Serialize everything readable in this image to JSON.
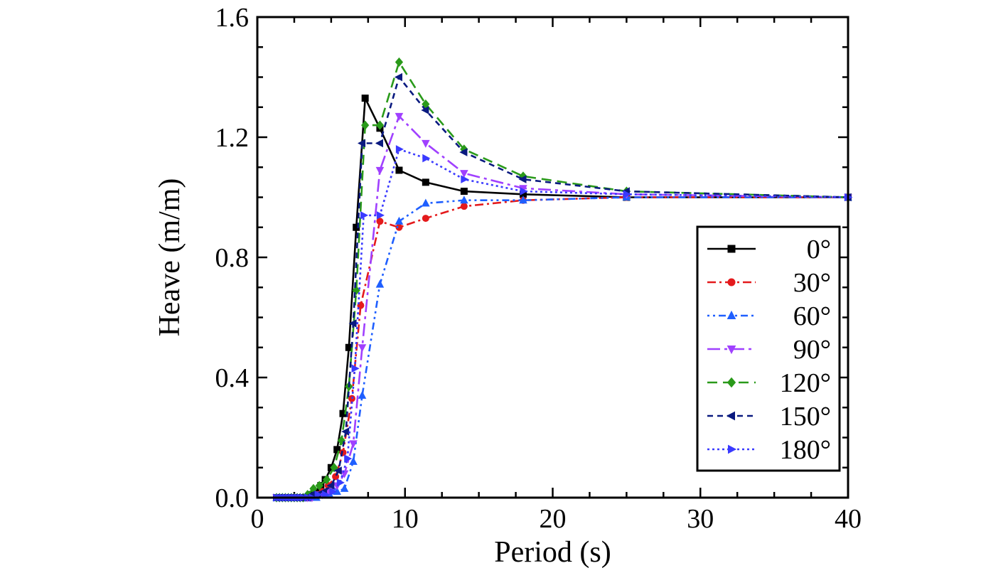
{
  "chart_data": {
    "type": "line",
    "title": "",
    "xlabel": "Period (s)",
    "ylabel": "Heave (m/m)",
    "xlim": [
      0,
      40
    ],
    "ylim": [
      0.0,
      1.6
    ],
    "xticks": [
      0,
      10,
      20,
      30,
      40
    ],
    "xtick_labels": [
      "0",
      "10",
      "20",
      "30",
      "40"
    ],
    "yticks": [
      0.0,
      0.4,
      0.8,
      1.2,
      1.6
    ],
    "ytick_labels": [
      "0.0",
      "0.4",
      "0.8",
      "1.2",
      "1.6"
    ],
    "grid": false,
    "legend_position": "right",
    "series": [
      {
        "name": "0°",
        "color": "#000000",
        "marker": "square",
        "dash": "solid",
        "x": [
          1.3,
          1.5,
          1.7,
          1.9,
          2.1,
          2.3,
          2.5,
          2.7,
          2.9,
          3.1,
          3.4,
          3.7,
          4.0,
          4.3,
          4.6,
          5.0,
          5.4,
          5.8,
          6.2,
          6.7,
          7.3,
          8.3,
          9.6,
          11.4,
          14.0,
          18.0,
          25.0,
          40.0
        ],
        "y": [
          0.0,
          0.0,
          0.0,
          0.0,
          0.0,
          0.0,
          0.0,
          0.0,
          0.0,
          0.0,
          0.0,
          0.01,
          0.02,
          0.04,
          0.06,
          0.1,
          0.16,
          0.28,
          0.5,
          0.9,
          1.33,
          1.23,
          1.09,
          1.05,
          1.02,
          1.01,
          1.0,
          1.0
        ]
      },
      {
        "name": "30°",
        "color": "#e41a1c",
        "marker": "circle",
        "dash": "12,5,3,5",
        "x": [
          1.3,
          1.5,
          1.7,
          1.9,
          2.1,
          2.3,
          2.5,
          2.7,
          2.9,
          3.1,
          3.4,
          3.7,
          4.0,
          4.4,
          4.8,
          5.3,
          5.8,
          6.4,
          7.0,
          8.3,
          9.6,
          11.4,
          14.0,
          18.0,
          25.0,
          40.0
        ],
        "y": [
          0.0,
          0.0,
          0.0,
          0.0,
          0.0,
          0.0,
          0.0,
          0.0,
          0.0,
          0.0,
          0.0,
          0.0,
          0.01,
          0.02,
          0.04,
          0.07,
          0.15,
          0.33,
          0.64,
          0.92,
          0.9,
          0.93,
          0.97,
          0.99,
          1.0,
          1.0
        ]
      },
      {
        "name": "60°",
        "color": "#1f5fff",
        "marker": "triangle-up",
        "dash": "3,5,3,5,10,5",
        "x": [
          1.3,
          1.5,
          1.7,
          1.9,
          2.1,
          2.3,
          2.5,
          2.7,
          2.9,
          3.1,
          3.4,
          3.7,
          4.0,
          4.4,
          4.9,
          5.4,
          5.9,
          6.5,
          7.1,
          8.3,
          9.6,
          11.4,
          14.0,
          18.0,
          25.0,
          40.0
        ],
        "y": [
          0.0,
          0.0,
          0.0,
          0.0,
          0.0,
          0.0,
          0.0,
          0.0,
          0.0,
          0.0,
          0.0,
          0.0,
          0.0,
          0.01,
          0.01,
          0.02,
          0.03,
          0.12,
          0.34,
          0.71,
          0.92,
          0.98,
          0.99,
          0.99,
          1.0,
          1.0
        ]
      },
      {
        "name": "90°",
        "color": "#a040ff",
        "marker": "triangle-down",
        "dash": "18,6,4,6",
        "x": [
          1.3,
          1.5,
          1.7,
          1.9,
          2.1,
          2.3,
          2.5,
          2.7,
          2.9,
          3.1,
          3.4,
          3.7,
          4.0,
          4.4,
          4.9,
          5.4,
          5.9,
          6.5,
          7.1,
          8.3,
          9.6,
          11.4,
          14.0,
          18.0,
          25.0,
          40.0
        ],
        "y": [
          0.0,
          0.0,
          0.0,
          0.0,
          0.0,
          0.0,
          0.0,
          0.0,
          0.0,
          0.0,
          0.0,
          0.0,
          0.01,
          0.01,
          0.02,
          0.04,
          0.08,
          0.18,
          0.5,
          1.09,
          1.27,
          1.18,
          1.08,
          1.03,
          1.01,
          1.0
        ]
      },
      {
        "name": "120°",
        "color": "#2a9a1a",
        "marker": "diamond",
        "dash": "14,8",
        "x": [
          1.3,
          1.5,
          1.7,
          1.9,
          2.1,
          2.3,
          2.5,
          2.7,
          2.9,
          3.1,
          3.4,
          3.8,
          4.2,
          4.7,
          5.2,
          5.7,
          6.2,
          6.7,
          7.3,
          8.3,
          9.6,
          11.4,
          14.0,
          18.0,
          25.0,
          40.0
        ],
        "y": [
          0.0,
          0.0,
          0.0,
          0.0,
          0.0,
          0.0,
          0.0,
          0.0,
          0.0,
          0.0,
          0.01,
          0.03,
          0.04,
          0.06,
          0.1,
          0.19,
          0.37,
          0.69,
          1.24,
          1.24,
          1.45,
          1.31,
          1.16,
          1.07,
          1.02,
          1.0
        ]
      },
      {
        "name": "150°",
        "color": "#0a1a80",
        "marker": "triangle-left",
        "dash": "8,6",
        "x": [
          1.3,
          1.5,
          1.7,
          1.9,
          2.1,
          2.3,
          2.5,
          2.7,
          2.9,
          3.1,
          3.4,
          3.7,
          4.1,
          4.5,
          5.0,
          5.5,
          6.0,
          6.5,
          7.1,
          8.3,
          9.6,
          11.4,
          14.0,
          18.0,
          25.0,
          40.0
        ],
        "y": [
          0.0,
          0.0,
          0.0,
          0.0,
          0.0,
          0.0,
          0.0,
          0.0,
          0.0,
          0.0,
          0.0,
          0.01,
          0.01,
          0.02,
          0.04,
          0.09,
          0.22,
          0.58,
          1.18,
          1.18,
          1.4,
          1.29,
          1.15,
          1.06,
          1.02,
          1.0
        ]
      },
      {
        "name": "180°",
        "color": "#3a3aff",
        "marker": "triangle-right",
        "dash": "3,4",
        "x": [
          1.3,
          1.5,
          1.7,
          1.9,
          2.1,
          2.3,
          2.5,
          2.7,
          2.9,
          3.1,
          3.4,
          3.7,
          4.1,
          4.6,
          5.1,
          5.6,
          6.1,
          6.6,
          7.2,
          8.3,
          9.6,
          11.4,
          14.0,
          18.0,
          25.0,
          40.0
        ],
        "y": [
          0.0,
          0.0,
          0.0,
          0.0,
          0.0,
          0.0,
          0.0,
          0.0,
          0.0,
          0.0,
          0.0,
          0.0,
          0.01,
          0.01,
          0.02,
          0.05,
          0.13,
          0.43,
          0.94,
          0.94,
          1.16,
          1.13,
          1.06,
          1.02,
          1.01,
          1.0
        ]
      }
    ]
  }
}
